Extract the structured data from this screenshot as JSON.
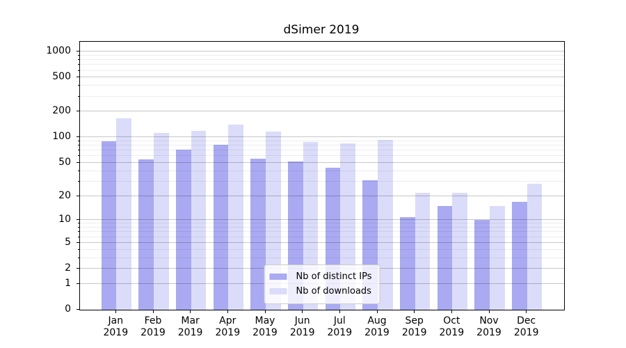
{
  "chart_data": {
    "type": "bar",
    "title": "dSimer 2019",
    "categories": [
      "Jan",
      "Feb",
      "Mar",
      "Apr",
      "May",
      "Jun",
      "Jul",
      "Aug",
      "Sep",
      "Oct",
      "Nov",
      "Dec"
    ],
    "year_label": "2019",
    "series": [
      {
        "name": "Nb of distinct IPs",
        "color": "#a9aaf1",
        "values": [
          89,
          55,
          72,
          82,
          56,
          52,
          44,
          31,
          11,
          15,
          10,
          17
        ]
      },
      {
        "name": "Nb of downloads",
        "color": "#dbdcf9",
        "values": [
          166,
          112,
          119,
          140,
          117,
          88,
          85,
          93,
          22,
          22,
          15,
          28
        ]
      }
    ],
    "xlabel": "",
    "ylabel": "",
    "y_scale": "log1p",
    "ylim": [
      0,
      1300
    ],
    "y_major_ticks": [
      1000,
      500,
      200,
      100,
      50,
      20,
      10,
      5,
      2,
      1,
      0
    ],
    "y_minor_ticks": [
      3,
      4,
      6,
      7,
      8,
      9,
      30,
      40,
      60,
      70,
      80,
      90,
      300,
      400,
      600,
      700,
      800,
      900
    ],
    "grid": "both",
    "legend_position": "lower center"
  }
}
